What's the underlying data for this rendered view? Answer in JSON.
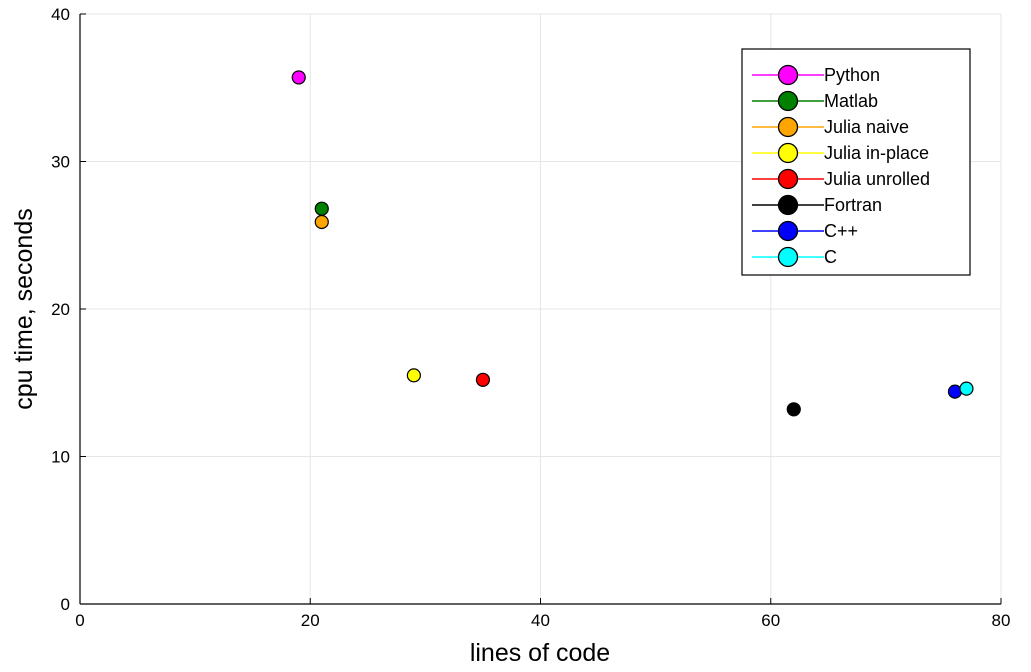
{
  "chart_data": {
    "type": "scatter",
    "xlabel": "lines of code",
    "ylabel": "cpu time, seconds",
    "xlim": [
      0,
      80
    ],
    "ylim": [
      0,
      40
    ],
    "xticks": [
      0,
      20,
      40,
      60,
      80
    ],
    "yticks": [
      0,
      10,
      20,
      30,
      40
    ],
    "grid": true,
    "legend_position": "top-right",
    "series": [
      {
        "name": "Python",
        "color": "#ff00ff",
        "x": 19,
        "y": 35.7
      },
      {
        "name": "Matlab",
        "color": "#008000",
        "x": 21,
        "y": 26.8
      },
      {
        "name": "Julia naive",
        "color": "#ffa500",
        "x": 21,
        "y": 25.9
      },
      {
        "name": "Julia in-place",
        "color": "#ffff00",
        "x": 29,
        "y": 15.5
      },
      {
        "name": "Julia unrolled",
        "color": "#ff0000",
        "x": 35,
        "y": 15.2
      },
      {
        "name": "Fortran",
        "color": "#000000",
        "x": 62,
        "y": 13.2
      },
      {
        "name": "C++",
        "color": "#0000ff",
        "x": 76,
        "y": 14.4
      },
      {
        "name": "C",
        "color": "#00ffff",
        "x": 77,
        "y": 14.6
      }
    ]
  }
}
